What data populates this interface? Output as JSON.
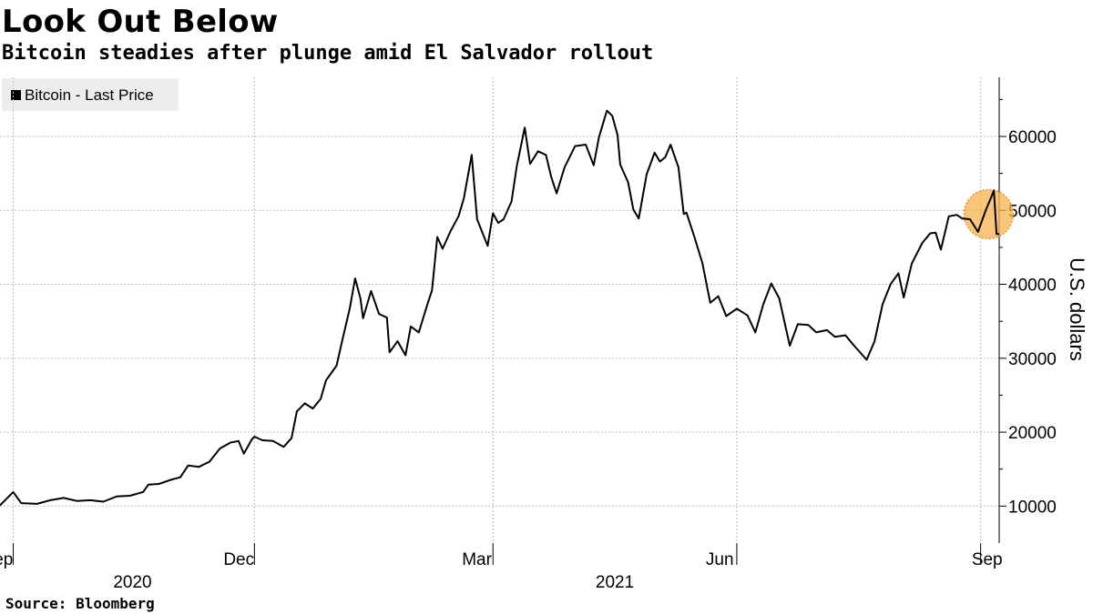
{
  "header": {
    "title": "Look Out Below",
    "subtitle": "Bitcoin steadies after plunge amid El Salvador rollout"
  },
  "legend": {
    "label": "Bitcoin - Last Price",
    "color": "#000000"
  },
  "source": "Source: Bloomberg",
  "colors": {
    "line": "#000000",
    "grid": "#bdbdbd",
    "highlight": "#f5b14c"
  },
  "chart_data": {
    "type": "line",
    "title": "Look Out Below",
    "subtitle": "Bitcoin steadies after plunge amid El Salvador rollout",
    "ylabel": "U.S. dollars",
    "y_axis_side": "right",
    "ylim": [
      5000,
      68000
    ],
    "yticks": [
      10000,
      20000,
      30000,
      40000,
      50000,
      60000
    ],
    "ytick_labels": [
      "10000",
      "20000",
      "30000",
      "40000",
      "50000",
      "60000"
    ],
    "xlim": [
      "2020-08-27",
      "2021-09-08"
    ],
    "xticks": [
      {
        "date": "2020-09-01",
        "label": "Sep"
      },
      {
        "date": "2020-12-01",
        "label": "Dec"
      },
      {
        "date": "2021-03-01",
        "label": "Mar"
      },
      {
        "date": "2021-06-01",
        "label": "Jun"
      },
      {
        "date": "2021-09-01",
        "label": "Sep"
      }
    ],
    "year_labels": [
      {
        "date": "2020-10-16",
        "label": "2020"
      },
      {
        "date": "2021-04-16",
        "label": "2021"
      }
    ],
    "grid": true,
    "legend_position": "top-left",
    "highlight": {
      "date": "2021-09-04",
      "value": 49500,
      "note": "recent peak and plunge highlighted"
    },
    "series": [
      {
        "name": "Bitcoin - Last Price",
        "points": [
          [
            "2020-08-27",
            10100
          ],
          [
            "2020-09-01",
            11900
          ],
          [
            "2020-09-04",
            10400
          ],
          [
            "2020-09-10",
            10300
          ],
          [
            "2020-09-15",
            10800
          ],
          [
            "2020-09-20",
            11100
          ],
          [
            "2020-09-25",
            10700
          ],
          [
            "2020-09-30",
            10800
          ],
          [
            "2020-10-05",
            10600
          ],
          [
            "2020-10-10",
            11300
          ],
          [
            "2020-10-15",
            11400
          ],
          [
            "2020-10-20",
            11900
          ],
          [
            "2020-10-22",
            12900
          ],
          [
            "2020-10-26",
            13000
          ],
          [
            "2020-10-30",
            13500
          ],
          [
            "2020-11-03",
            13900
          ],
          [
            "2020-11-06",
            15500
          ],
          [
            "2020-11-10",
            15300
          ],
          [
            "2020-11-14",
            16000
          ],
          [
            "2020-11-18",
            17800
          ],
          [
            "2020-11-22",
            18600
          ],
          [
            "2020-11-25",
            18800
          ],
          [
            "2020-11-27",
            17100
          ],
          [
            "2020-11-30",
            19000
          ],
          [
            "2020-12-01",
            19400
          ],
          [
            "2020-12-04",
            18900
          ],
          [
            "2020-12-08",
            18800
          ],
          [
            "2020-12-12",
            18000
          ],
          [
            "2020-12-15",
            19200
          ],
          [
            "2020-12-17",
            22800
          ],
          [
            "2020-12-20",
            23900
          ],
          [
            "2020-12-23",
            23200
          ],
          [
            "2020-12-26",
            24500
          ],
          [
            "2020-12-28",
            27000
          ],
          [
            "2021-01-01",
            29000
          ],
          [
            "2021-01-03",
            32200
          ],
          [
            "2021-01-06",
            36800
          ],
          [
            "2021-01-08",
            40800
          ],
          [
            "2021-01-10",
            38100
          ],
          [
            "2021-01-11",
            35400
          ],
          [
            "2021-01-14",
            39100
          ],
          [
            "2021-01-17",
            36000
          ],
          [
            "2021-01-20",
            35500
          ],
          [
            "2021-01-21",
            30800
          ],
          [
            "2021-01-24",
            32300
          ],
          [
            "2021-01-27",
            30400
          ],
          [
            "2021-01-29",
            34300
          ],
          [
            "2021-02-01",
            33500
          ],
          [
            "2021-02-04",
            37000
          ],
          [
            "2021-02-06",
            39200
          ],
          [
            "2021-02-08",
            46400
          ],
          [
            "2021-02-10",
            44800
          ],
          [
            "2021-02-13",
            47200
          ],
          [
            "2021-02-16",
            49200
          ],
          [
            "2021-02-18",
            51600
          ],
          [
            "2021-02-21",
            57500
          ],
          [
            "2021-02-23",
            48800
          ],
          [
            "2021-02-25",
            47000
          ],
          [
            "2021-02-27",
            45200
          ],
          [
            "2021-03-01",
            49600
          ],
          [
            "2021-03-03",
            48300
          ],
          [
            "2021-03-05",
            48800
          ],
          [
            "2021-03-08",
            51200
          ],
          [
            "2021-03-10",
            56000
          ],
          [
            "2021-03-13",
            61200
          ],
          [
            "2021-03-15",
            56300
          ],
          [
            "2021-03-18",
            58000
          ],
          [
            "2021-03-21",
            57500
          ],
          [
            "2021-03-23",
            54500
          ],
          [
            "2021-03-25",
            52300
          ],
          [
            "2021-03-28",
            55800
          ],
          [
            "2021-04-01",
            58700
          ],
          [
            "2021-04-05",
            58900
          ],
          [
            "2021-04-08",
            56100
          ],
          [
            "2021-04-10",
            59900
          ],
          [
            "2021-04-13",
            63500
          ],
          [
            "2021-04-15",
            62800
          ],
          [
            "2021-04-17",
            60200
          ],
          [
            "2021-04-18",
            56200
          ],
          [
            "2021-04-21",
            53800
          ],
          [
            "2021-04-23",
            50100
          ],
          [
            "2021-04-25",
            48900
          ],
          [
            "2021-04-28",
            54900
          ],
          [
            "2021-05-01",
            57800
          ],
          [
            "2021-05-03",
            56600
          ],
          [
            "2021-05-05",
            57200
          ],
          [
            "2021-05-07",
            58900
          ],
          [
            "2021-05-10",
            55800
          ],
          [
            "2021-05-12",
            49500
          ],
          [
            "2021-05-13",
            49700
          ],
          [
            "2021-05-16",
            46400
          ],
          [
            "2021-05-19",
            42900
          ],
          [
            "2021-05-22",
            37500
          ],
          [
            "2021-05-25",
            38400
          ],
          [
            "2021-05-28",
            35700
          ],
          [
            "2021-06-01",
            36700
          ],
          [
            "2021-06-05",
            35800
          ],
          [
            "2021-06-08",
            33500
          ],
          [
            "2021-06-11",
            37300
          ],
          [
            "2021-06-14",
            40100
          ],
          [
            "2021-06-17",
            38100
          ],
          [
            "2021-06-21",
            31700
          ],
          [
            "2021-06-24",
            34600
          ],
          [
            "2021-06-28",
            34500
          ],
          [
            "2021-07-01",
            33500
          ],
          [
            "2021-07-05",
            33800
          ],
          [
            "2021-07-08",
            32900
          ],
          [
            "2021-07-12",
            33100
          ],
          [
            "2021-07-15",
            31800
          ],
          [
            "2021-07-20",
            29800
          ],
          [
            "2021-07-23",
            32300
          ],
          [
            "2021-07-26",
            37300
          ],
          [
            "2021-07-29",
            40000
          ],
          [
            "2021-08-01",
            41500
          ],
          [
            "2021-08-03",
            38200
          ],
          [
            "2021-08-06",
            42800
          ],
          [
            "2021-08-10",
            45600
          ],
          [
            "2021-08-13",
            46900
          ],
          [
            "2021-08-15",
            47000
          ],
          [
            "2021-08-17",
            44700
          ],
          [
            "2021-08-20",
            49200
          ],
          [
            "2021-08-23",
            49400
          ],
          [
            "2021-08-25",
            48900
          ],
          [
            "2021-08-28",
            48800
          ],
          [
            "2021-08-31",
            47100
          ],
          [
            "2021-09-03",
            50100
          ],
          [
            "2021-09-05",
            51800
          ],
          [
            "2021-09-06",
            52700
          ],
          [
            "2021-09-07",
            46800
          ],
          [
            "2021-09-08",
            46800
          ]
        ]
      }
    ]
  }
}
